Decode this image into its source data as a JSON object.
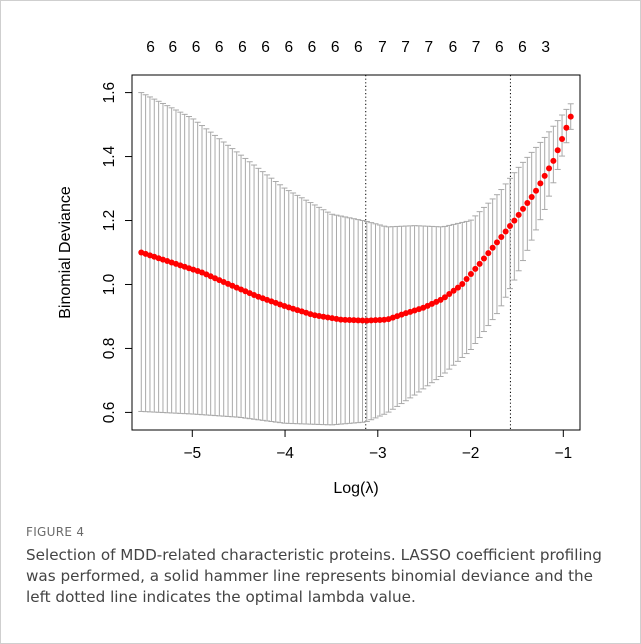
{
  "figure": {
    "label": "FIGURE 4",
    "caption": "Selection of MDD-related characteristic proteins. LASSO coefficient profiling was performed, a solid hammer line represents binomial deviance and the left dotted line indicates the optimal lambda value."
  },
  "chart_data": {
    "type": "scatter",
    "xlabel": "Log(λ)",
    "ylabel": "Binomial Deviance",
    "xlim": [
      -5.65,
      -0.82
    ],
    "ylim": [
      0.545,
      1.655
    ],
    "x_ticks": [
      -5,
      -4,
      -3,
      -2,
      -1
    ],
    "x_tick_labels": [
      "−5",
      "−4",
      "−3",
      "−2",
      "−1"
    ],
    "y_ticks": [
      0.6,
      0.8,
      1.0,
      1.2,
      1.4,
      1.6
    ],
    "y_tick_labels": [
      "0.6",
      "0.8",
      "1.0",
      "1.2",
      "1.4",
      "1.6"
    ],
    "top_axis": {
      "x": [
        -5.45,
        -5.21,
        -4.96,
        -4.71,
        -4.46,
        -4.21,
        -3.96,
        -3.71,
        -3.46,
        -3.21,
        -2.95,
        -2.7,
        -2.45,
        -2.19,
        -1.94,
        -1.69,
        -1.44,
        -1.19
      ],
      "labels": [
        "6",
        "6",
        "6",
        "6",
        "6",
        "6",
        "6",
        "6",
        "6",
        "6",
        "7",
        "7",
        "7",
        "6",
        "7",
        "6",
        "6",
        "3"
      ]
    },
    "vlines": [
      {
        "x": -3.13,
        "style": "dotted",
        "meaning": "lambda.min"
      },
      {
        "x": -1.57,
        "style": "dotted",
        "meaning": "lambda.1se"
      }
    ],
    "series": [
      {
        "color": "#ff0000",
        "points": [
          [
            -5.55,
            1.1
          ],
          [
            -4.9,
            1.038
          ],
          [
            -4.6,
            1.0
          ],
          [
            -4.3,
            0.963
          ],
          [
            -4.0,
            0.932
          ],
          [
            -3.7,
            0.905
          ],
          [
            -3.4,
            0.89
          ],
          [
            -3.13,
            0.887
          ],
          [
            -2.9,
            0.89
          ],
          [
            -2.7,
            0.91
          ],
          [
            -2.5,
            0.928
          ],
          [
            -2.3,
            0.955
          ],
          [
            -2.1,
            0.998
          ],
          [
            -1.9,
            1.065
          ],
          [
            -1.7,
            1.137
          ],
          [
            -1.5,
            1.21
          ],
          [
            -1.3,
            1.29
          ],
          [
            -1.1,
            1.39
          ],
          [
            -0.92,
            1.525
          ]
        ],
        "error_upper": [
          [
            -5.55,
            1.6
          ],
          [
            -5.0,
            1.52
          ],
          [
            -4.5,
            1.41
          ],
          [
            -4.0,
            1.3
          ],
          [
            -3.5,
            1.22
          ],
          [
            -3.13,
            1.198
          ],
          [
            -2.9,
            1.18
          ],
          [
            -2.6,
            1.184
          ],
          [
            -2.3,
            1.18
          ],
          [
            -2.0,
            1.2
          ],
          [
            -1.7,
            1.285
          ],
          [
            -1.5,
            1.36
          ],
          [
            -1.2,
            1.46
          ],
          [
            -0.92,
            1.565
          ]
        ],
        "error_lower": [
          [
            -5.55,
            0.603
          ],
          [
            -5.0,
            0.595
          ],
          [
            -4.5,
            0.585
          ],
          [
            -4.0,
            0.566
          ],
          [
            -3.5,
            0.561
          ],
          [
            -3.13,
            0.57
          ],
          [
            -2.9,
            0.598
          ],
          [
            -2.6,
            0.655
          ],
          [
            -2.3,
            0.717
          ],
          [
            -2.0,
            0.795
          ],
          [
            -1.7,
            0.915
          ],
          [
            -1.5,
            1.03
          ],
          [
            -1.2,
            1.235
          ],
          [
            -0.92,
            1.485
          ]
        ]
      }
    ]
  }
}
